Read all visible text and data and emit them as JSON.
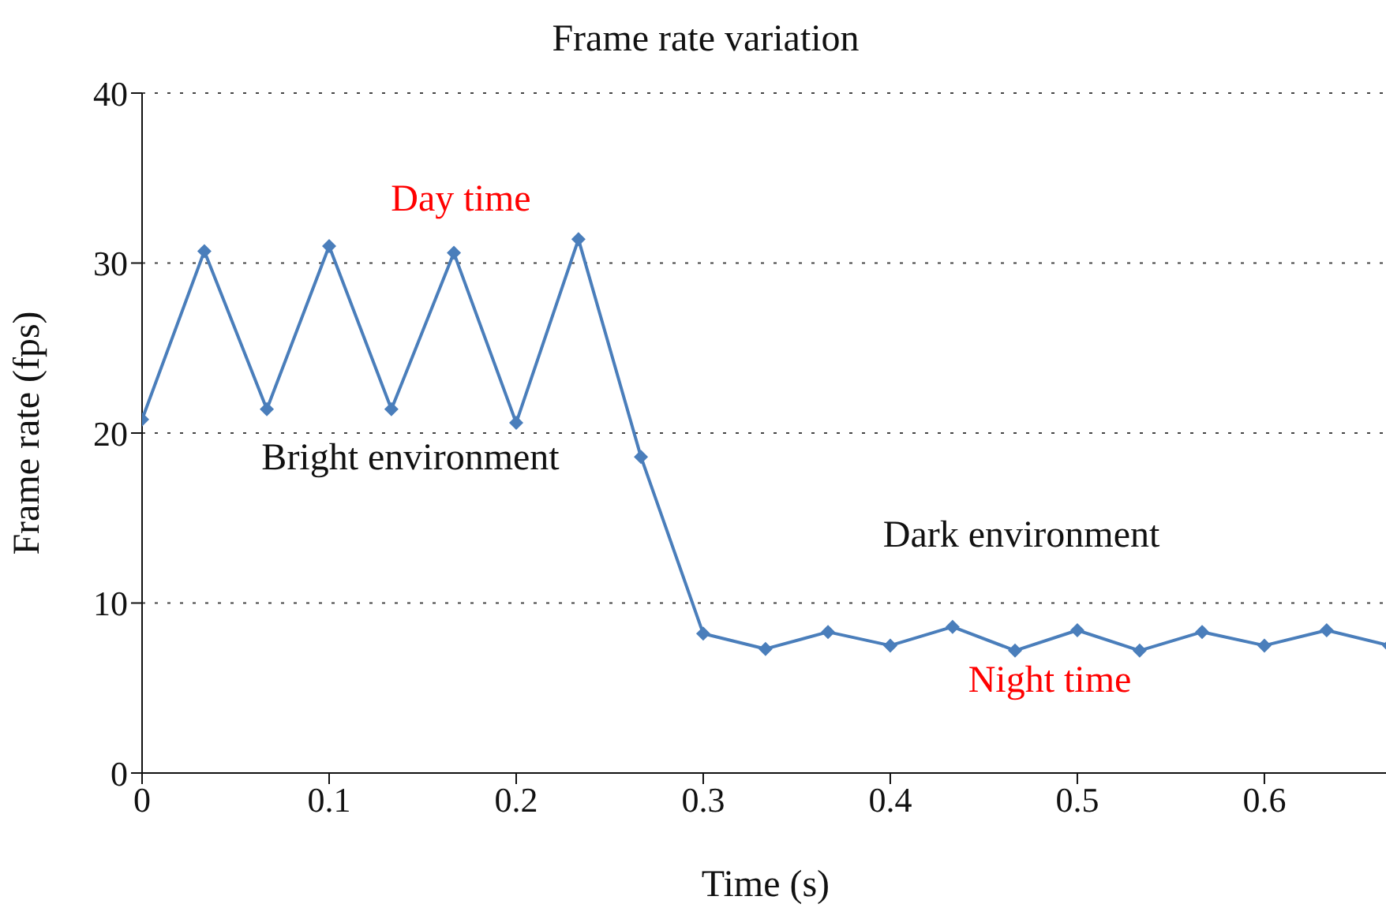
{
  "chart_data": {
    "type": "line",
    "title": "Frame rate variation",
    "xlabel": "Time (s)",
    "ylabel": "Frame rate (fps)",
    "x": [
      0,
      0.0333,
      0.0667,
      0.1,
      0.1333,
      0.1667,
      0.2,
      0.2333,
      0.2667,
      0.3,
      0.3333,
      0.3667,
      0.4,
      0.4333,
      0.4667,
      0.5,
      0.5333,
      0.5667,
      0.6,
      0.6333,
      0.6667
    ],
    "series": [
      {
        "color": "#4a7ebb",
        "values": [
          20.8,
          30.7,
          21.4,
          31.0,
          21.4,
          30.6,
          20.6,
          31.4,
          18.6,
          8.2,
          7.3,
          8.3,
          7.5,
          8.6,
          7.2,
          8.4,
          7.2,
          8.3,
          7.5,
          8.4,
          7.5
        ]
      }
    ],
    "xlim": [
      0,
      0.6667
    ],
    "xticks": [
      0,
      0.1,
      0.2,
      0.3,
      0.4,
      0.5,
      0.6
    ],
    "ylim": [
      0,
      40
    ],
    "yticks": [
      0,
      10,
      20,
      30,
      40
    ],
    "grid": "y",
    "legend": false,
    "marker": "diamond",
    "line_style": "solid",
    "annotations": [
      "Day time",
      "Bright environment",
      "Dark environment",
      "Night time"
    ]
  }
}
